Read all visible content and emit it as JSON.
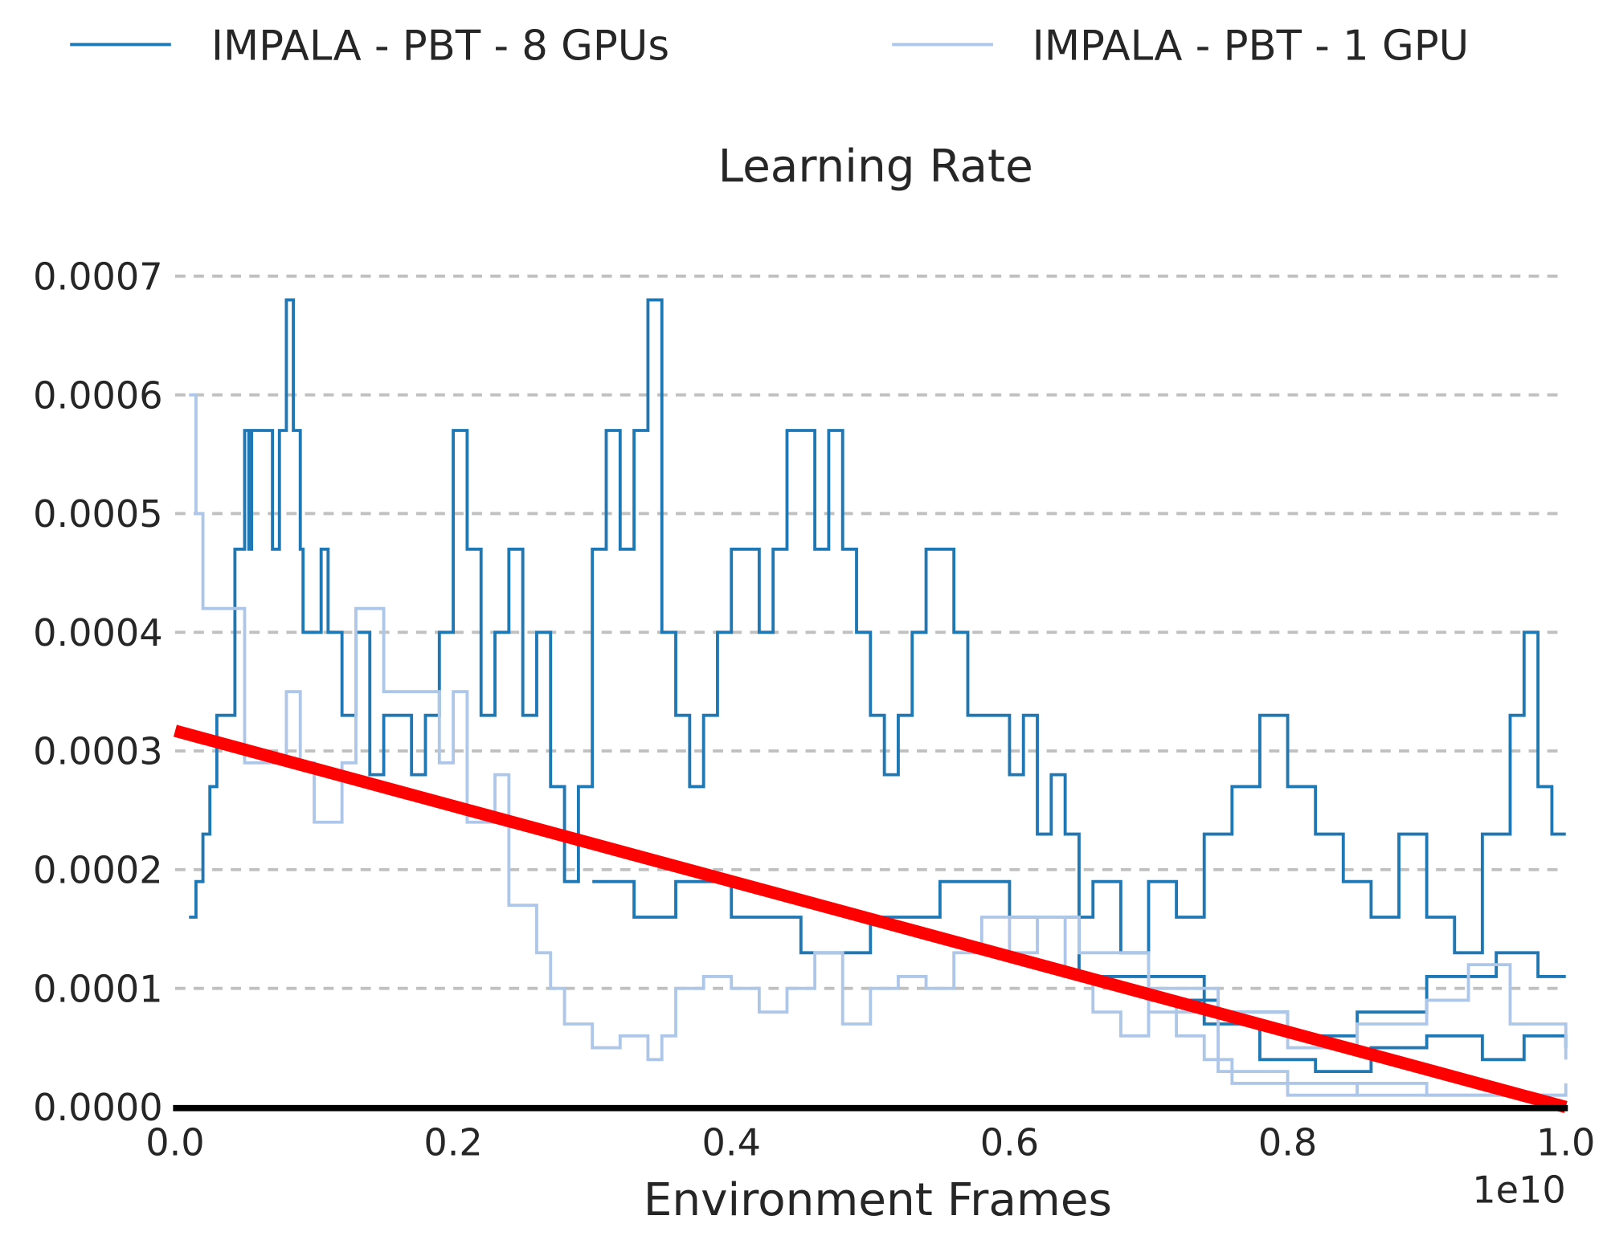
{
  "chart_data": {
    "type": "line",
    "title": "Learning Rate",
    "xlabel": "Environment Frames",
    "ylabel": "",
    "x_multiplier_label": "1e10",
    "xlim": [
      0.0,
      1.0
    ],
    "ylim": [
      0.0,
      0.0007
    ],
    "x_ticks": [
      "0.0",
      "0.2",
      "0.4",
      "0.6",
      "0.8",
      "1.0"
    ],
    "y_ticks": [
      "0.0000",
      "0.0001",
      "0.0002",
      "0.0003",
      "0.0004",
      "0.0005",
      "0.0006",
      "0.0007"
    ],
    "grid": "horizontal dashed",
    "legend_position": "top",
    "line_style": "step",
    "colors": {
      "8gpu": "#1f77b4",
      "1gpu": "#aec7e8",
      "trend": "#ff0000",
      "grid": "#c0c0c0",
      "axis": "#000000"
    },
    "series": [
      {
        "name": "IMPALA - PBT - 8 GPUs",
        "color": "#1f77b4",
        "traces": [
          [
            [
              0.01,
              0.00016
            ],
            [
              0.015,
              0.00019
            ],
            [
              0.02,
              0.00023
            ],
            [
              0.025,
              0.00027
            ],
            [
              0.03,
              0.00033
            ],
            [
              0.04,
              0.00033
            ],
            [
              0.043,
              0.00047
            ],
            [
              0.05,
              0.00057
            ],
            [
              0.053,
              0.00047
            ],
            [
              0.055,
              0.00057
            ],
            [
              0.07,
              0.00047
            ],
            [
              0.075,
              0.00057
            ],
            [
              0.08,
              0.00068
            ],
            [
              0.085,
              0.00057
            ],
            [
              0.09,
              0.00047
            ],
            [
              0.092,
              0.0004
            ],
            [
              0.1,
              0.0004
            ],
            [
              0.105,
              0.00047
            ],
            [
              0.11,
              0.0004
            ],
            [
              0.12,
              0.00033
            ],
            [
              0.13,
              0.0004
            ],
            [
              0.14,
              0.00028
            ],
            [
              0.15,
              0.00033
            ],
            [
              0.17,
              0.00028
            ],
            [
              0.18,
              0.00033
            ],
            [
              0.19,
              0.0004
            ],
            [
              0.2,
              0.00057
            ],
            [
              0.21,
              0.00047
            ],
            [
              0.22,
              0.00033
            ],
            [
              0.23,
              0.0004
            ],
            [
              0.24,
              0.00047
            ],
            [
              0.25,
              0.00033
            ],
            [
              0.26,
              0.0004
            ],
            [
              0.27,
              0.00027
            ],
            [
              0.28,
              0.00019
            ],
            [
              0.29,
              0.00027
            ],
            [
              0.3,
              0.00047
            ],
            [
              0.31,
              0.00057
            ],
            [
              0.32,
              0.00047
            ],
            [
              0.33,
              0.00057
            ],
            [
              0.34,
              0.00068
            ],
            [
              0.35,
              0.0004
            ],
            [
              0.36,
              0.00033
            ],
            [
              0.37,
              0.00027
            ],
            [
              0.38,
              0.00033
            ],
            [
              0.39,
              0.0004
            ],
            [
              0.4,
              0.00047
            ],
            [
              0.42,
              0.0004
            ],
            [
              0.43,
              0.00047
            ],
            [
              0.44,
              0.00057
            ],
            [
              0.46,
              0.00047
            ],
            [
              0.47,
              0.00057
            ],
            [
              0.48,
              0.00047
            ],
            [
              0.49,
              0.0004
            ],
            [
              0.5,
              0.00033
            ],
            [
              0.51,
              0.00028
            ],
            [
              0.52,
              0.00033
            ],
            [
              0.53,
              0.0004
            ],
            [
              0.54,
              0.00047
            ],
            [
              0.56,
              0.0004
            ],
            [
              0.57,
              0.00033
            ],
            [
              0.6,
              0.00028
            ],
            [
              0.61,
              0.00033
            ],
            [
              0.62,
              0.00023
            ],
            [
              0.63,
              0.00028
            ],
            [
              0.64,
              0.00023
            ],
            [
              0.65,
              0.00016
            ],
            [
              0.66,
              0.00019
            ],
            [
              0.68,
              0.00013
            ],
            [
              0.7,
              0.00019
            ],
            [
              0.72,
              0.00016
            ],
            [
              0.74,
              0.00023
            ],
            [
              0.76,
              0.00027
            ],
            [
              0.78,
              0.00033
            ],
            [
              0.8,
              0.00027
            ],
            [
              0.82,
              0.00023
            ],
            [
              0.84,
              0.00019
            ],
            [
              0.86,
              0.00016
            ],
            [
              0.88,
              0.00023
            ],
            [
              0.9,
              0.00016
            ],
            [
              0.92,
              0.00013
            ],
            [
              0.94,
              0.00023
            ],
            [
              0.96,
              0.00033
            ],
            [
              0.97,
              0.0004
            ],
            [
              0.98,
              0.00027
            ],
            [
              0.99,
              0.00023
            ],
            [
              1.0,
              0.00023
            ]
          ],
          [
            [
              0.3,
              0.00019
            ],
            [
              0.33,
              0.00016
            ],
            [
              0.36,
              0.00019
            ],
            [
              0.4,
              0.00016
            ],
            [
              0.45,
              0.00013
            ],
            [
              0.5,
              0.00016
            ],
            [
              0.55,
              0.00019
            ],
            [
              0.6,
              0.00016
            ],
            [
              0.65,
              0.00011
            ],
            [
              0.7,
              9e-05
            ],
            [
              0.75,
              8e-05
            ],
            [
              0.8,
              6e-05
            ],
            [
              0.85,
              8e-05
            ],
            [
              0.9,
              0.00011
            ],
            [
              0.95,
              0.00013
            ],
            [
              0.98,
              0.00011
            ],
            [
              1.0,
              0.00011
            ]
          ],
          [
            [
              0.7,
              0.00011
            ],
            [
              0.74,
              7e-05
            ],
            [
              0.78,
              4e-05
            ],
            [
              0.82,
              3e-05
            ],
            [
              0.86,
              5e-05
            ],
            [
              0.9,
              6e-05
            ],
            [
              0.94,
              4e-05
            ],
            [
              0.97,
              6e-05
            ],
            [
              1.0,
              5e-05
            ]
          ]
        ]
      },
      {
        "name": "IMPALA - PBT - 1 GPU",
        "color": "#aec7e8",
        "traces": [
          [
            [
              0.01,
              0.0006
            ],
            [
              0.015,
              0.0005
            ],
            [
              0.02,
              0.00042
            ],
            [
              0.04,
              0.00042
            ],
            [
              0.05,
              0.00029
            ],
            [
              0.07,
              0.00029
            ],
            [
              0.08,
              0.00035
            ],
            [
              0.09,
              0.00029
            ],
            [
              0.1,
              0.00024
            ],
            [
              0.12,
              0.00029
            ],
            [
              0.13,
              0.00042
            ],
            [
              0.15,
              0.00035
            ],
            [
              0.17,
              0.00035
            ],
            [
              0.19,
              0.00029
            ],
            [
              0.2,
              0.00035
            ],
            [
              0.21,
              0.00024
            ],
            [
              0.23,
              0.00028
            ],
            [
              0.24,
              0.00017
            ],
            [
              0.26,
              0.00013
            ],
            [
              0.27,
              0.0001
            ],
            [
              0.28,
              7e-05
            ],
            [
              0.3,
              5e-05
            ],
            [
              0.32,
              6e-05
            ],
            [
              0.34,
              4e-05
            ],
            [
              0.35,
              6e-05
            ],
            [
              0.36,
              0.0001
            ],
            [
              0.38,
              0.00011
            ],
            [
              0.4,
              0.0001
            ],
            [
              0.42,
              8e-05
            ],
            [
              0.44,
              0.0001
            ],
            [
              0.46,
              0.00013
            ],
            [
              0.48,
              7e-05
            ],
            [
              0.5,
              0.0001
            ],
            [
              0.52,
              0.00011
            ],
            [
              0.54,
              0.0001
            ],
            [
              0.56,
              0.00013
            ],
            [
              0.58,
              0.00016
            ],
            [
              0.6,
              0.00013
            ],
            [
              0.62,
              0.00016
            ],
            [
              0.64,
              0.00011
            ],
            [
              0.66,
              8e-05
            ],
            [
              0.68,
              6e-05
            ],
            [
              0.7,
              9e-05
            ],
            [
              0.72,
              6e-05
            ],
            [
              0.74,
              4e-05
            ],
            [
              0.76,
              2e-05
            ],
            [
              0.8,
              2e-05
            ],
            [
              0.85,
              1e-05
            ],
            [
              0.9,
              1e-05
            ],
            [
              1.0,
              1e-05
            ]
          ],
          [
            [
              0.6,
              0.00016
            ],
            [
              0.65,
              0.00013
            ],
            [
              0.7,
              0.0001
            ],
            [
              0.75,
              8e-05
            ],
            [
              0.8,
              5e-05
            ],
            [
              0.85,
              7e-05
            ],
            [
              0.9,
              9e-05
            ],
            [
              0.93,
              0.00012
            ],
            [
              0.96,
              7e-05
            ],
            [
              1.0,
              4e-05
            ]
          ],
          [
            [
              0.7,
              8e-05
            ],
            [
              0.75,
              3e-05
            ],
            [
              0.8,
              1e-05
            ],
            [
              0.85,
              2e-05
            ],
            [
              0.9,
              1e-05
            ],
            [
              1.0,
              2e-05
            ]
          ]
        ]
      },
      {
        "color": "#ff0000",
        "traces": [
          [
            [
              0.0,
              0.000317
            ],
            [
              1.0,
              0.0
            ]
          ]
        ],
        "style": "straight"
      }
    ]
  }
}
